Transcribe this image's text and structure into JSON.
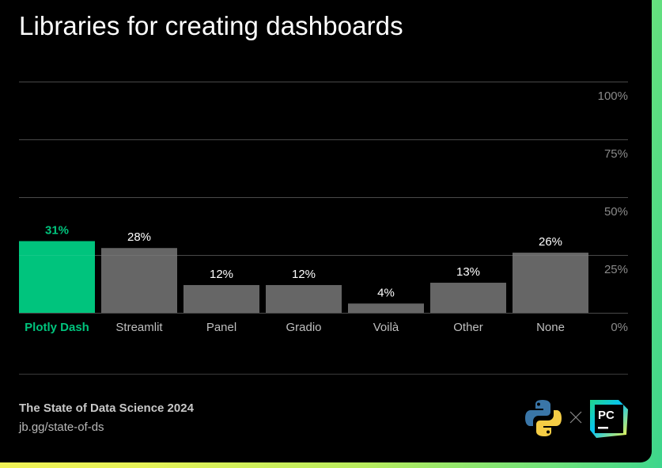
{
  "title": "Libraries for creating dashboards",
  "footer": {
    "source": "The State of Data Science 2024",
    "link": "jb.gg/state-of-ds"
  },
  "logos": [
    "python-logo",
    "times-icon",
    "pycharm-logo"
  ],
  "colors": {
    "highlight": "#00c47d",
    "bar": "#666666",
    "gridline": "#3a3a3a",
    "tick_label": "#8a8a8a",
    "category_label": "#bfbfbf",
    "value_label": "#ffffff"
  },
  "chart_data": {
    "type": "bar",
    "title": "Libraries for creating dashboards",
    "xlabel": "",
    "ylabel": "",
    "categories": [
      "Plotly Dash",
      "Streamlit",
      "Panel",
      "Gradio",
      "Voilà",
      "Other",
      "None"
    ],
    "values": [
      31,
      28,
      12,
      12,
      4,
      13,
      26
    ],
    "value_labels": [
      "31%",
      "28%",
      "12%",
      "12%",
      "4%",
      "13%",
      "26%"
    ],
    "highlighted_index": 0,
    "ylim": [
      0,
      100
    ],
    "yticks": [
      0,
      25,
      50,
      75,
      100
    ],
    "ytick_labels": [
      "0%",
      "25%",
      "50%",
      "75%",
      "100%"
    ],
    "ytick_position": "right",
    "grid": true,
    "legend": "none"
  }
}
